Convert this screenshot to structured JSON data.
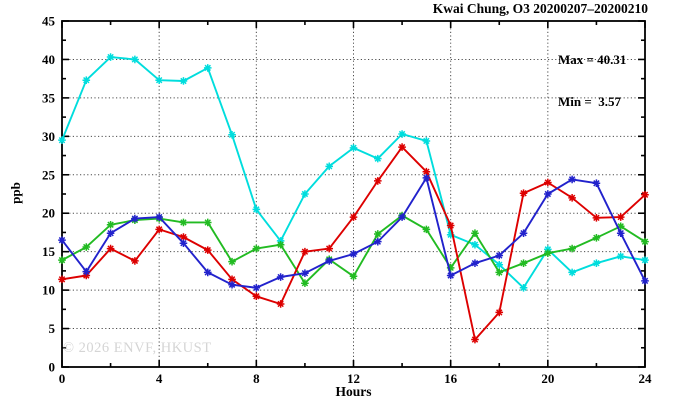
{
  "title": "Kwai Chung, O3 20200207–20200210",
  "stats": {
    "max_label": "Max = 40.31",
    "min_label": "Min =  3.57"
  },
  "watermark": "© 2026 ENVF, HKUST",
  "chart_data": {
    "type": "line",
    "title": "Kwai Chung, O3 20200207–20200210",
    "xlabel": "Hours",
    "ylabel": "ppb",
    "xlim": [
      0,
      24
    ],
    "ylim": [
      0,
      45
    ],
    "x_major_ticks": [
      0,
      4,
      8,
      12,
      16,
      20,
      24
    ],
    "x_minor_step": 2,
    "y_major_ticks": [
      0,
      5,
      10,
      15,
      20,
      25,
      30,
      35,
      40,
      45
    ],
    "y_minor_step": 2.5,
    "grid": "dotted",
    "legend": "none",
    "max": 40.31,
    "min": 3.57,
    "x": [
      0,
      1,
      2,
      3,
      4,
      5,
      6,
      7,
      8,
      9,
      10,
      11,
      12,
      13,
      14,
      15,
      16,
      17,
      18,
      19,
      20,
      21,
      22,
      23,
      24
    ],
    "series": [
      {
        "name": "cyan-line",
        "color": "#00DDDD",
        "values": [
          29.5,
          37.3,
          40.31,
          40.0,
          37.3,
          37.2,
          38.9,
          30.2,
          20.5,
          16.4,
          22.5,
          26.1,
          28.5,
          27.1,
          30.3,
          29.4,
          17.2,
          15.9,
          13.3,
          10.3,
          15.3,
          12.3,
          13.5,
          14.4,
          13.9
        ]
      },
      {
        "name": "green-line",
        "color": "#22BB22",
        "values": [
          13.9,
          15.6,
          18.5,
          19.1,
          19.3,
          18.8,
          18.8,
          13.7,
          15.4,
          15.9,
          10.9,
          14.0,
          11.8,
          17.3,
          19.7,
          17.9,
          12.9,
          17.4,
          12.3,
          13.5,
          14.8,
          15.4,
          16.8,
          18.3,
          16.3
        ]
      },
      {
        "name": "red-line",
        "color": "#DD0000",
        "values": [
          11.4,
          11.9,
          15.4,
          13.8,
          17.9,
          16.9,
          15.2,
          11.4,
          9.2,
          8.2,
          15.0,
          15.4,
          19.5,
          24.2,
          28.6,
          25.4,
          18.4,
          3.57,
          7.1,
          22.6,
          24.0,
          22.0,
          19.4,
          19.5,
          22.4
        ]
      },
      {
        "name": "blue-line",
        "color": "#2222CC",
        "values": [
          16.5,
          12.4,
          17.4,
          19.3,
          19.5,
          16.1,
          12.3,
          10.7,
          10.3,
          11.7,
          12.2,
          13.8,
          14.7,
          16.3,
          19.5,
          24.6,
          11.9,
          13.5,
          14.5,
          17.4,
          22.5,
          24.4,
          23.9,
          17.4,
          11.2
        ]
      }
    ]
  }
}
